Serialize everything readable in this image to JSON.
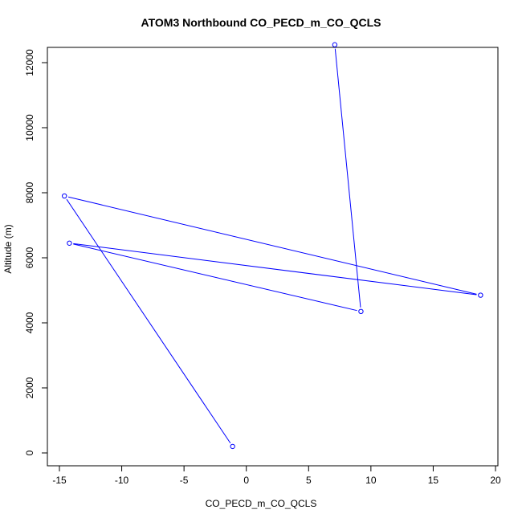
{
  "chart_data": {
    "type": "line",
    "title": "ATOM3 Northbound CO_PECD_m_CO_QCLS",
    "xlabel": "CO_PECD_m_CO_QCLS",
    "ylabel": "Altitude (m)",
    "xlim": [
      -15,
      20
    ],
    "ylim": [
      0,
      12000
    ],
    "x_ticks": [
      -15,
      -10,
      -5,
      0,
      5,
      10,
      15,
      20
    ],
    "y_ticks": [
      0,
      2000,
      4000,
      6000,
      8000,
      10000,
      12000
    ],
    "grid": false,
    "series": [
      {
        "color": "#0000ff",
        "marker": "open-circle",
        "points": [
          {
            "x": -1.1,
            "y": 200
          },
          {
            "x": -14.6,
            "y": 7900
          },
          {
            "x": 18.8,
            "y": 4850
          },
          {
            "x": -14.2,
            "y": 6450
          },
          {
            "x": 9.2,
            "y": 4350
          },
          {
            "x": 7.1,
            "y": 12550
          }
        ]
      }
    ]
  }
}
